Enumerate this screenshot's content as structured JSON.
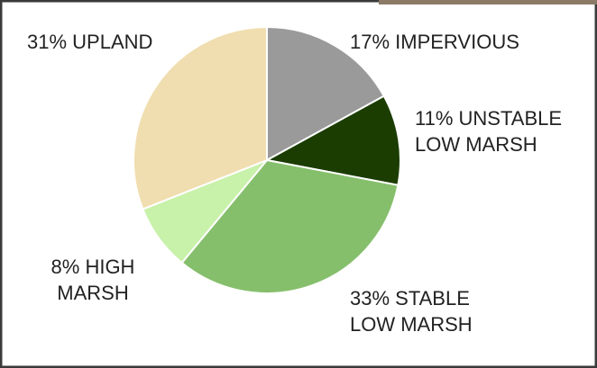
{
  "chart_data": {
    "type": "pie",
    "values": [
      17,
      11,
      33,
      8,
      31
    ],
    "labels": [
      [
        "17% IMPERVIOUS"
      ],
      [
        "11% UNSTABLE",
        "LOW MARSH"
      ],
      [
        "33% STABLE",
        "LOW MARSH"
      ],
      [
        "8% HIGH",
        "MARSH"
      ],
      [
        "31% UPLAND"
      ]
    ],
    "colors": [
      "#9a9a9a",
      "#1b3d02",
      "#86bf6c",
      "#c8f1aa",
      "#f0deb0"
    ]
  }
}
